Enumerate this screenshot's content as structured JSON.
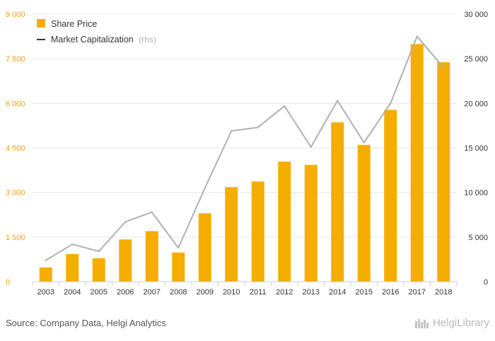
{
  "colors": {
    "bar": "#f5ad00",
    "line": "#b0b0b0",
    "left_axis_text": "#f5a300",
    "grid": "#e6e6e6"
  },
  "footer": {
    "source": "Source: Company Data, Helgi Analytics",
    "brand": "HelgiLibrary",
    "brand_icon": "library-logo-icon"
  },
  "chart_data": {
    "type": "bar",
    "grid": true,
    "legend_position": "top-left",
    "categories": [
      "2003",
      "2004",
      "2005",
      "2006",
      "2007",
      "2008",
      "2009",
      "2010",
      "2011",
      "2012",
      "2013",
      "2014",
      "2015",
      "2016",
      "2017",
      "2018"
    ],
    "series": [
      {
        "name": "Share Price",
        "type": "bar",
        "axis": "left",
        "values": [
          480,
          930,
          790,
          1420,
          1700,
          980,
          2300,
          3180,
          3370,
          4040,
          3930,
          5360,
          4600,
          5780,
          7990,
          7380
        ]
      },
      {
        "name": "Market Capitalization",
        "name_suffix": "(rhs)",
        "type": "line",
        "axis": "right",
        "values": [
          2400,
          4200,
          3400,
          6700,
          7800,
          3800,
          10500,
          16900,
          17300,
          19700,
          15100,
          20300,
          15600,
          20000,
          27500,
          24000
        ]
      }
    ],
    "y_left": {
      "lim": [
        0,
        9000
      ],
      "ticks": [
        0,
        1500,
        3000,
        4500,
        6000,
        7500,
        9000
      ],
      "tick_labels": [
        "0",
        "1 500",
        "3 000",
        "4 500",
        "6 000",
        "7 500",
        "9 000"
      ]
    },
    "y_right": {
      "lim": [
        0,
        30000
      ],
      "ticks": [
        0,
        5000,
        10000,
        15000,
        20000,
        25000,
        30000
      ],
      "tick_labels": [
        "0",
        "5 000",
        "10 000",
        "15 000",
        "20 000",
        "25 000",
        "30 000"
      ]
    }
  }
}
